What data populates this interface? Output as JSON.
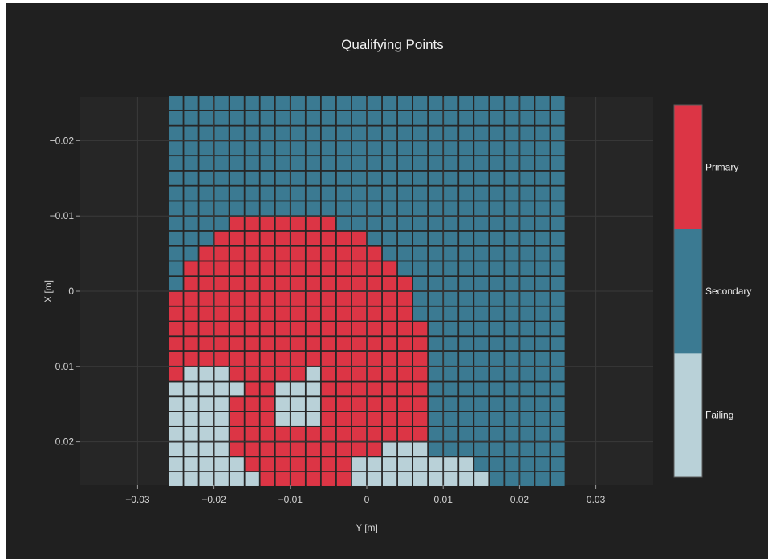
{
  "chart_data": {
    "type": "heatmap",
    "title": "Qualifying Points",
    "xlabel": "Y [m]",
    "ylabel": "X [m]",
    "xlim": [
      -0.0375,
      0.0375
    ],
    "ylim": [
      -0.0258,
      0.0258
    ],
    "y_reversed": true,
    "x_ticks": [
      {
        "value": -0.03,
        "label": "−0.03"
      },
      {
        "value": -0.02,
        "label": "−0.02"
      },
      {
        "value": -0.01,
        "label": "−0.01"
      },
      {
        "value": 0,
        "label": "0"
      },
      {
        "value": 0.01,
        "label": "0.01"
      },
      {
        "value": 0.02,
        "label": "0.02"
      },
      {
        "value": 0.03,
        "label": "0.03"
      }
    ],
    "y_ticks": [
      {
        "value": -0.02,
        "label": "−0.02"
      },
      {
        "value": -0.01,
        "label": "−0.01"
      },
      {
        "value": 0,
        "label": "0"
      },
      {
        "value": 0.01,
        "label": "0.01"
      },
      {
        "value": 0.02,
        "label": "0.02"
      }
    ],
    "grid": true,
    "cell_size": 0.002,
    "x_range": [
      -0.026,
      0.026
    ],
    "y_range": [
      -0.026,
      0.026
    ],
    "categories": [
      {
        "code": "P",
        "name": "Primary",
        "color": "#dc3545"
      },
      {
        "code": "S",
        "name": "Secondary",
        "color": "#3b7a92"
      },
      {
        "code": "F",
        "name": "Failing",
        "color": "#b9d1d8"
      }
    ],
    "colorbar_position": "right",
    "rows": [
      "SSSSSSSSSSSSSSSSSSSSSSSSSS",
      "SSSSSSSSSSSSSSSSSSSSSSSSSS",
      "SSSSSSSSSSSSSSSSSSSSSSSSSS",
      "SSSSSSSSSSSSSSSSSSSSSSSSSS",
      "SSSSSSSSSSSSSSSSSSSSSSSSSS",
      "SSSSSSSSSSSSSSSSSSSSSSSSSS",
      "SSSSSSSSSSSSSSSSSSSSSSSSSS",
      "SSSSSSSSSSSSSSSSSSSSSSSSSS",
      "SSSSPPPPPPPSSSSSSSSSSSSSSS",
      "SSSPPPPPPPPPPSSSSSSSSSSSSS",
      "SSPPPPPPPPPPPPSSSSSSSSSSSS",
      "SPPPPPPPPPPPPPPSSSSSSSSSSS",
      "SPPPPPPPPPPPPPPPSSSSSSSSSS",
      "PPPPPPPPPPPPPPPPSSSSSSSSSS",
      "PPPPPPPPPPPPPPPPSSSSSSSSSS",
      "PPPPPPPPPPPPPPPPPSSSSSSSSS",
      "PPPPPPPPPPPPPPPPPSSSSSSSSS",
      "PPPPPPPPPPPPPPPPPSSSSSSSSS",
      "PFFFPPPPPFPPPPPPPSSSSSSSSS",
      "FFFFFPPFFFPPPPPPPSSSSSSSSS",
      "FFFFPPPFFFPPPPPPPSSSSSSSSS",
      "FFFFPPPFFFPPPPPPPSSSSSSSSS",
      "FFFFPPPPPPPPPPPPPSSSSSSSSS",
      "FFFFPPPPPPPPPPFFFSSSSSSSSS",
      "FFFFFPPPPPPPFFFFFFFFSSSSSS",
      "FFFFFFPPPPPPFFFFFFFFFSSSSS"
    ]
  }
}
